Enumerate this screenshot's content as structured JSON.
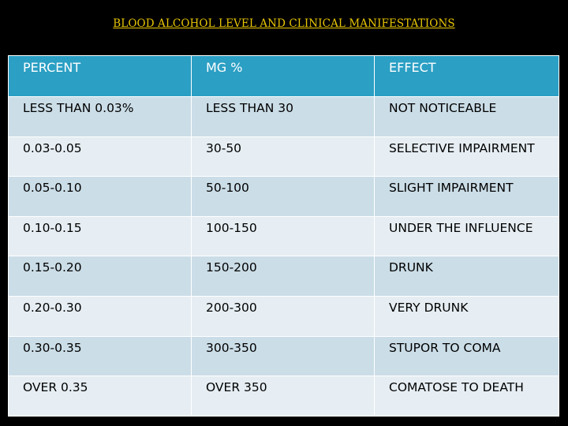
{
  "title": "BLOOD ALCOHOL LEVEL AND CLINICAL MANIFESTATIONS",
  "colors": {
    "background": "#000000",
    "title": "#e8c600",
    "header_fill": "#2b9fc4",
    "row_fill_dark": "#cbdde7",
    "row_fill_light": "#e6eef3"
  },
  "table": {
    "headers": [
      "PERCENT",
      "MG %",
      "EFFECT"
    ],
    "rows": [
      [
        "LESS THAN 0.03%",
        "LESS THAN 30",
        "NOT NOTICEABLE"
      ],
      [
        "0.03-0.05",
        "30-50",
        "SELECTIVE IMPAIRMENT"
      ],
      [
        "0.05-0.10",
        "50-100",
        "SLIGHT IMPAIRMENT"
      ],
      [
        "0.10-0.15",
        "100-150",
        "UNDER THE INFLUENCE"
      ],
      [
        "0.15-0.20",
        "150-200",
        "DRUNK"
      ],
      [
        "0.20-0.30",
        "200-300",
        "VERY DRUNK"
      ],
      [
        "0.30-0.35",
        "300-350",
        "STUPOR TO COMA"
      ],
      [
        "OVER 0.35",
        "OVER 350",
        "COMATOSE TO DEATH"
      ]
    ]
  }
}
